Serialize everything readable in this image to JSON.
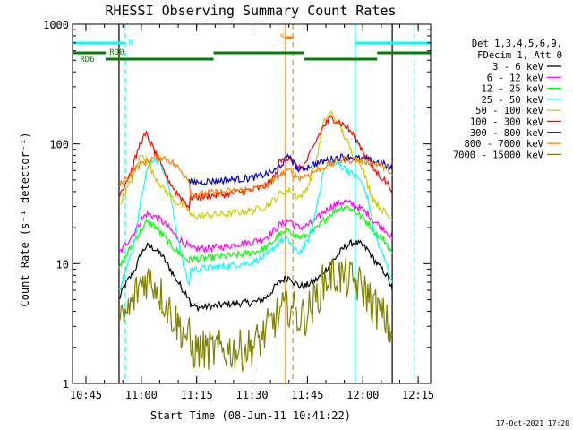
{
  "chart_data": {
    "type": "line",
    "title": "RHESSI Observing Summary Count Rates",
    "xlabel": "Start Time (08-Jun-11 10:41:22)",
    "ylabel": "Count Rate (s⁻¹ detector⁻¹)",
    "yscale": "log",
    "ylim": [
      1,
      1000
    ],
    "xlim_minutes": [
      0,
      97
    ],
    "x_ticks": [
      {
        "t": 3.63,
        "label": "10:45"
      },
      {
        "t": 18.63,
        "label": "11:00"
      },
      {
        "t": 33.63,
        "label": "11:15"
      },
      {
        "t": 48.63,
        "label": "11:30"
      },
      {
        "t": 63.63,
        "label": "11:45"
      },
      {
        "t": 78.63,
        "label": "12:00"
      },
      {
        "t": 93.63,
        "label": "12:15"
      }
    ],
    "y_ticks": [
      {
        "v": 1,
        "label": "1"
      },
      {
        "v": 10,
        "label": "10"
      },
      {
        "v": 100,
        "label": "100"
      },
      {
        "v": 1000,
        "label": "1000"
      }
    ],
    "legend_header": [
      "Det 1,3,4,5,6,9,",
      "FDecim 1, Att 0"
    ],
    "legend_position": "right",
    "series": [
      {
        "name": "3 - 6 keV",
        "color": "#000000",
        "x": [
          12.6,
          14,
          16,
          17,
          18.5,
          20,
          22,
          24,
          26,
          28,
          30,
          31.6,
          32,
          34,
          38,
          42,
          46,
          48,
          51,
          53,
          55,
          56,
          57.5,
          59,
          60,
          61.5,
          63,
          65,
          66.5,
          68,
          70,
          72,
          74,
          76,
          78,
          80,
          81.5,
          83,
          84.5,
          85.5,
          86.6
        ],
        "y": [
          5,
          6.5,
          8,
          9,
          12,
          14,
          13.5,
          12,
          9.5,
          7.5,
          6,
          5.3,
          4.5,
          4.3,
          4.4,
          4.6,
          4.7,
          4.7,
          4.9,
          5.4,
          6.5,
          7,
          7.5,
          7.8,
          7,
          6.5,
          6.5,
          7,
          7.5,
          8.5,
          10,
          12,
          14,
          15,
          14.5,
          13,
          11,
          9.5,
          8.5,
          7.5,
          6
        ]
      },
      {
        "name": "6 - 12 keV",
        "color": "#ff00ff",
        "x": [
          12.6,
          14,
          16,
          17,
          18.5,
          20,
          22,
          24,
          26,
          28,
          30,
          31.6,
          32,
          34,
          38,
          42,
          46,
          48,
          51,
          53,
          55,
          56,
          57.5,
          59,
          60,
          61.5,
          63,
          65,
          66.5,
          68,
          70,
          72,
          74,
          76,
          78,
          80,
          81.5,
          83,
          84.5,
          85.5,
          86.6
        ],
        "y": [
          12,
          14,
          17,
          19,
          23,
          26,
          25,
          23,
          20,
          17,
          15,
          14,
          13.2,
          13.3,
          13.6,
          14,
          14.8,
          15,
          16,
          17,
          19.5,
          21,
          22,
          23,
          21,
          20,
          20.5,
          22,
          24,
          27,
          30,
          32,
          33,
          31,
          29,
          26,
          23,
          21,
          19.5,
          18,
          16
        ]
      },
      {
        "name": "12 - 25 keV",
        "color": "#00ff00",
        "x": [
          12.6,
          14,
          16,
          17,
          18.5,
          20,
          22,
          24,
          26,
          28,
          30,
          31.6,
          32,
          34,
          38,
          42,
          46,
          48,
          51,
          53,
          55,
          56,
          57.5,
          59,
          60,
          61.5,
          63,
          65,
          66.5,
          68,
          70,
          72,
          74,
          76,
          78,
          80,
          81.5,
          83,
          84.5,
          85.5,
          86.6
        ],
        "y": [
          9,
          11,
          14,
          16,
          19,
          22,
          21,
          18,
          15,
          13,
          11.5,
          10.5,
          11,
          11,
          11.3,
          11.6,
          12,
          12.3,
          13,
          14,
          16,
          17.5,
          18,
          19,
          17.5,
          16.5,
          17,
          18.5,
          20,
          23,
          26,
          29,
          30,
          28,
          25,
          22,
          19,
          17,
          15.5,
          14,
          12
        ]
      },
      {
        "name": "25 - 50 keV",
        "color": "#00ffff",
        "x": [
          12.6,
          14,
          16,
          17,
          18.5,
          20,
          22,
          24,
          26,
          28,
          30,
          31.6,
          32,
          34,
          38,
          42,
          46,
          48,
          51,
          53,
          55,
          56,
          57.5,
          59,
          60,
          61.5,
          63,
          65,
          66.5,
          68,
          70,
          72,
          74,
          76,
          78,
          80,
          81.5,
          83,
          84.5,
          85.5,
          86.6
        ],
        "y": [
          6,
          8,
          12,
          17,
          35,
          60,
          75,
          70,
          45,
          20,
          10,
          6.5,
          9,
          9,
          9.3,
          9.6,
          10,
          10.2,
          11,
          12,
          14,
          15.5,
          16,
          15,
          13,
          12.5,
          14,
          20,
          35,
          60,
          70,
          68,
          62,
          55,
          50,
          35,
          20,
          14,
          11,
          9,
          7
        ]
      },
      {
        "name": "50 - 100 keV",
        "color": "#cccc00",
        "x": [
          12.6,
          14,
          16,
          17,
          18.5,
          20,
          22,
          24,
          26,
          28,
          30,
          31.6,
          32,
          34,
          38,
          42,
          46,
          48,
          51,
          53,
          55,
          56,
          57.5,
          59,
          60,
          61.5,
          63,
          65,
          66.5,
          68,
          70,
          72,
          74,
          76,
          78,
          80,
          81.5,
          83,
          84.5,
          85.5,
          86.6
        ],
        "y": [
          30,
          38,
          50,
          62,
          80,
          75,
          55,
          45,
          38,
          33,
          30,
          28,
          25,
          25,
          25.5,
          26,
          27,
          27.5,
          29,
          31,
          35,
          38,
          40,
          41,
          38,
          36,
          40,
          55,
          85,
          150,
          180,
          150,
          110,
          80,
          70,
          45,
          35,
          30,
          27,
          25,
          23
        ]
      },
      {
        "name": "100 - 300 keV",
        "color": "#ff0000",
        "x": [
          12.6,
          14,
          16,
          17,
          18.5,
          20,
          22,
          24,
          26,
          28,
          30,
          31.6,
          32,
          34,
          38,
          42,
          46,
          48,
          51,
          53,
          55,
          56,
          57.5,
          59,
          60,
          61.5,
          63,
          65,
          66.5,
          68,
          70,
          72,
          74,
          76,
          78,
          80,
          81.5,
          83,
          84.5,
          85.5,
          86.6
        ],
        "y": [
          38,
          45,
          60,
          75,
          105,
          120,
          90,
          65,
          50,
          40,
          34,
          30,
          36,
          36,
          37,
          38,
          40,
          41,
          43,
          46,
          55,
          70,
          75,
          78,
          68,
          62,
          68,
          90,
          115,
          140,
          165,
          155,
          140,
          120,
          95,
          75,
          62,
          55,
          50,
          46,
          42
        ]
      },
      {
        "name": "300 - 800 keV",
        "color": "#0000cc",
        "x": [
          31.6,
          34,
          38,
          42,
          46,
          50,
          53,
          55,
          56,
          57,
          58,
          59,
          60,
          61.5,
          63,
          65,
          67,
          69,
          71,
          73,
          75,
          77,
          79,
          81,
          83,
          84,
          85,
          86,
          86.6
        ],
        "y": [
          48,
          48,
          49,
          50,
          51,
          53,
          57,
          60,
          65,
          70,
          75,
          80,
          68,
          60,
          63,
          67,
          70,
          73,
          76,
          78,
          78,
          76,
          74,
          72,
          70,
          68,
          66,
          64,
          60
        ]
      },
      {
        "name": "800 - 7000 keV",
        "color": "#ff8000",
        "x": [
          12.6,
          14,
          16,
          17,
          18.5,
          20,
          22,
          24,
          26,
          28,
          30,
          31.6,
          32,
          34,
          38,
          42,
          46,
          50,
          53,
          55,
          56,
          58,
          59,
          60,
          61.5,
          63,
          65,
          67,
          69,
          71,
          73,
          75,
          77,
          79,
          81,
          83,
          84,
          85,
          86,
          86.6
        ],
        "y": [
          45,
          50,
          56,
          62,
          68,
          72,
          76,
          78,
          74,
          66,
          57,
          50,
          38,
          38,
          39,
          40,
          41,
          43,
          46,
          50,
          55,
          58,
          60,
          56,
          52,
          54,
          58,
          62,
          66,
          70,
          73,
          74,
          73,
          72,
          70,
          68,
          65,
          63,
          60,
          55
        ]
      },
      {
        "name": "7000 - 15000 keV",
        "color": "#808000",
        "x": [
          12.6,
          14,
          16,
          17,
          18.5,
          20,
          22,
          24,
          26,
          28,
          30,
          31.6,
          32,
          34,
          38,
          42,
          46,
          48,
          50,
          52,
          54,
          56,
          57.5,
          59,
          60,
          61.5,
          63,
          65,
          66.5,
          68,
          70,
          72,
          74,
          76,
          78,
          80,
          81.5,
          83,
          84.5,
          85.5,
          86.6
        ],
        "y": [
          3,
          3.5,
          4.5,
          5.5,
          7,
          7.5,
          7,
          5.5,
          4.2,
          3.3,
          2.7,
          2.4,
          1.9,
          1.9,
          1.9,
          1.9,
          1.9,
          2,
          2.2,
          2.6,
          3.2,
          3.8,
          4.2,
          4.5,
          4,
          3.5,
          3.7,
          4.5,
          5.5,
          7,
          8,
          8,
          7.5,
          7,
          6.5,
          5.5,
          4.5,
          4,
          3.5,
          3,
          2.5
        ]
      }
    ],
    "state_bars": {
      "N": {
        "color": "#00ffff",
        "label": "N",
        "segments": [
          [
            0,
            14.3
          ],
          [
            76.7,
            97
          ]
        ],
        "value_level": 660
      },
      "S": {
        "color": "#ff8000",
        "label": "S",
        "segments": [
          [
            57.7,
            59.5
          ]
        ],
        "value_level": 760
      },
      "RD0": {
        "color": "#008000",
        "label": "RD0",
        "segments": [
          [
            0,
            9
          ],
          [
            38.2,
            62.7
          ],
          [
            82.5,
            97
          ]
        ]
      },
      "RD6": {
        "color": "#008000",
        "label": "RD6",
        "segments": [
          [
            9,
            38.2
          ],
          [
            62.7,
            82.5
          ]
        ]
      }
    },
    "vertical_markers": [
      {
        "t": 0.1,
        "color": "#00ffff",
        "style": "solid"
      },
      {
        "t": 14.3,
        "color": "#00ffff",
        "style": "dashed"
      },
      {
        "t": 76.6,
        "color": "#00ffff",
        "style": "solid"
      },
      {
        "t": 92.7,
        "color": "#00ffff",
        "style": "dashed"
      },
      {
        "t": 57.7,
        "color": "#ff8000",
        "style": "solid"
      },
      {
        "t": 59.7,
        "color": "#ff8000",
        "style": "dashed"
      },
      {
        "t": 12.6,
        "color": "#000000",
        "style": "solid"
      },
      {
        "t": 86.6,
        "color": "#000000",
        "style": "solid"
      }
    ]
  },
  "footer": {
    "timestamp": "17-Oct-2021 17:20"
  }
}
